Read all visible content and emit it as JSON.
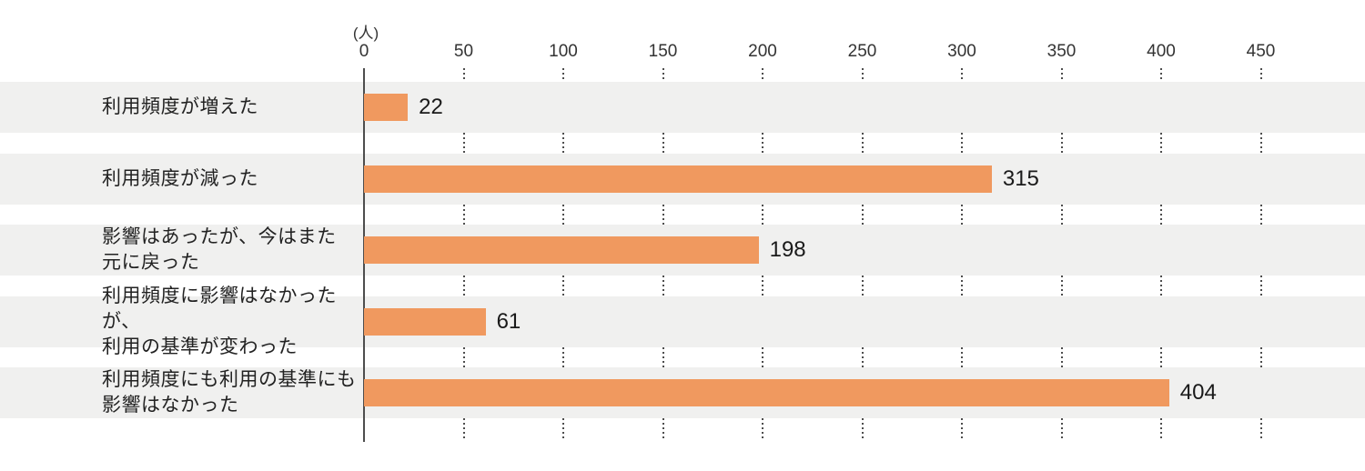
{
  "chart_data": {
    "type": "bar",
    "orientation": "horizontal",
    "title": "",
    "unit_label": "(人)",
    "xlabel": "",
    "ylabel": "",
    "xlim": [
      0,
      500
    ],
    "x_ticks": [
      0,
      50,
      100,
      150,
      200,
      250,
      300,
      350,
      400,
      450
    ],
    "grid": "dotted vertical gridlines shown only in gaps between row bands",
    "legend": "none",
    "categories": [
      "利用頻度が増えた",
      "利用頻度が減った",
      "影響はあったが、今はまた元に戻った",
      "利用頻度に影響はなかったが、利用の基準が変わった",
      "利用頻度にも利用の基準にも影響はなかった"
    ],
    "category_lines": [
      [
        "利用頻度が増えた"
      ],
      [
        "利用頻度が減った"
      ],
      [
        "影響はあったが、今はまた",
        "元に戻った"
      ],
      [
        "利用頻度に影響はなかったが、",
        "利用の基準が変わった"
      ],
      [
        "利用頻度にも利用の基準にも",
        "影響はなかった"
      ]
    ],
    "values": [
      22,
      315,
      198,
      61,
      404
    ],
    "colors": {
      "bar": "#F0995F",
      "row_background": "#F0F0EF",
      "axis": "#4D4D4D",
      "grid_dot": "#4D4D4D",
      "value_text": "#1A1A1A",
      "category_text": "#222222",
      "tick_text": "#333333"
    }
  }
}
